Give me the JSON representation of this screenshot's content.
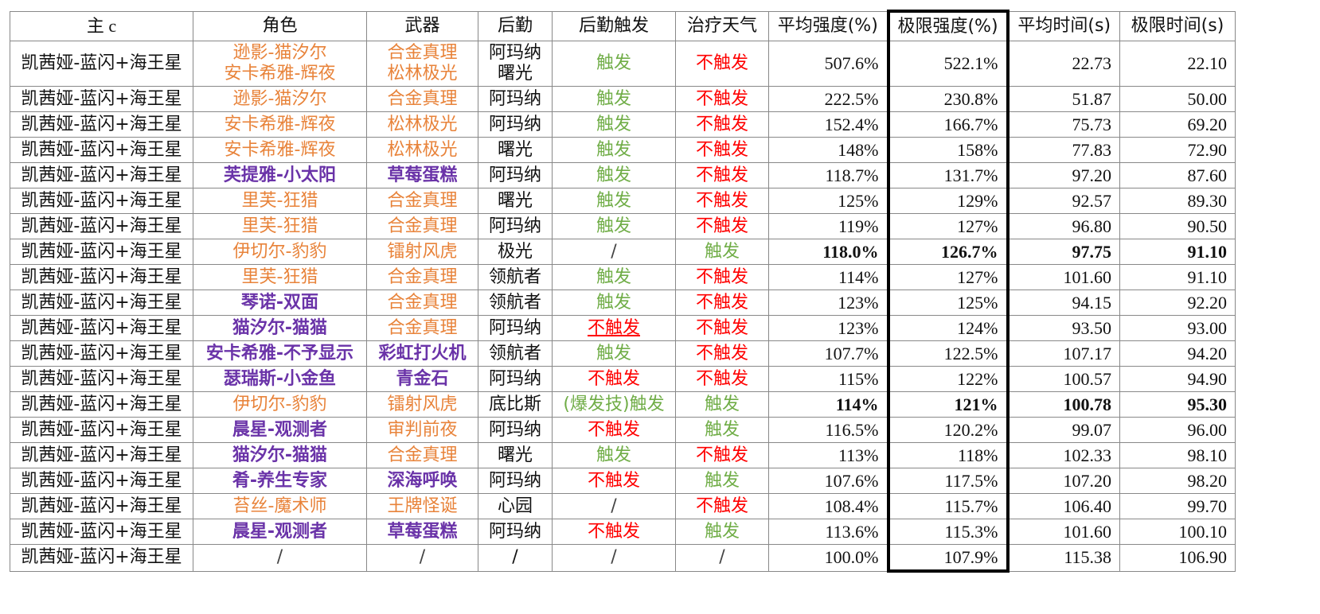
{
  "headers": [
    "主 c",
    "角色",
    "武器",
    "后勤",
    "后勤触发",
    "治疗天气",
    "平均强度(%)",
    "极限强度(%)",
    "平均时间(s)",
    "极限时间(s)"
  ],
  "rows": [
    {
      "main": "凯茜娅-蓝闪+海王星",
      "role": [
        "逊影-猫汐尔",
        "安卡希雅-辉夜"
      ],
      "role_style": "orange",
      "weapon": [
        "合金真理",
        "松林极光"
      ],
      "weapon_style": "orange",
      "logi": [
        "阿玛纳",
        "曙光"
      ],
      "trigger": "触发",
      "trigger_style": "green",
      "heal": "不触发",
      "heal_style": "red",
      "avg": "507.6%",
      "max": "522.1%",
      "avg_t": "22.73",
      "max_t": "22.10",
      "bold": false
    },
    {
      "main": "凯茜娅-蓝闪+海王星",
      "role": "逊影-猫汐尔",
      "role_style": "orange",
      "weapon": "合金真理",
      "weapon_style": "orange",
      "logi": "阿玛纳",
      "trigger": "触发",
      "trigger_style": "green",
      "heal": "不触发",
      "heal_style": "red",
      "avg": "222.5%",
      "max": "230.8%",
      "avg_t": "51.87",
      "max_t": "50.00",
      "bold": false
    },
    {
      "main": "凯茜娅-蓝闪+海王星",
      "role": "安卡希雅-辉夜",
      "role_style": "orange",
      "weapon": "松林极光",
      "weapon_style": "orange",
      "logi": "阿玛纳",
      "trigger": "触发",
      "trigger_style": "green",
      "heal": "不触发",
      "heal_style": "red",
      "avg": "152.4%",
      "max": "166.7%",
      "avg_t": "75.73",
      "max_t": "69.20",
      "bold": false
    },
    {
      "main": "凯茜娅-蓝闪+海王星",
      "role": "安卡希雅-辉夜",
      "role_style": "orange",
      "weapon": "松林极光",
      "weapon_style": "orange",
      "logi": "曙光",
      "trigger": "触发",
      "trigger_style": "green",
      "heal": "不触发",
      "heal_style": "red",
      "avg": "148%",
      "max": "158%",
      "avg_t": "77.83",
      "max_t": "72.90",
      "bold": false
    },
    {
      "main": "凯茜娅-蓝闪+海王星",
      "role": "芙提雅-小太阳",
      "role_style": "purple",
      "weapon": "草莓蛋糕",
      "weapon_style": "purple",
      "logi": "阿玛纳",
      "trigger": "触发",
      "trigger_style": "green",
      "heal": "不触发",
      "heal_style": "red",
      "avg": "118.7%",
      "max": "131.7%",
      "avg_t": "97.20",
      "max_t": "87.60",
      "bold": false
    },
    {
      "main": "凯茜娅-蓝闪+海王星",
      "role": "里芙-狂猎",
      "role_style": "orange",
      "weapon": "合金真理",
      "weapon_style": "orange",
      "logi": "曙光",
      "trigger": "触发",
      "trigger_style": "green",
      "heal": "不触发",
      "heal_style": "red",
      "avg": "125%",
      "max": "129%",
      "avg_t": "92.57",
      "max_t": "89.30",
      "bold": false
    },
    {
      "main": "凯茜娅-蓝闪+海王星",
      "role": "里芙-狂猎",
      "role_style": "orange",
      "weapon": "合金真理",
      "weapon_style": "orange",
      "logi": "阿玛纳",
      "trigger": "触发",
      "trigger_style": "green",
      "heal": "不触发",
      "heal_style": "red",
      "avg": "119%",
      "max": "127%",
      "avg_t": "96.80",
      "max_t": "90.50",
      "bold": false
    },
    {
      "main": "凯茜娅-蓝闪+海王星",
      "role": "伊切尔-豹豹",
      "role_style": "orange",
      "weapon": "镭射风虎",
      "weapon_style": "orange",
      "logi": "极光",
      "trigger": "/",
      "trigger_style": "grey",
      "heal": "触发",
      "heal_style": "green",
      "avg": "118.0%",
      "max": "126.7%",
      "avg_t": "97.75",
      "max_t": "91.10",
      "bold": true
    },
    {
      "main": "凯茜娅-蓝闪+海王星",
      "role": "里芙-狂猎",
      "role_style": "orange",
      "weapon": "合金真理",
      "weapon_style": "orange",
      "logi": "领航者",
      "trigger": "触发",
      "trigger_style": "green",
      "heal": "不触发",
      "heal_style": "red",
      "avg": "114%",
      "max": "127%",
      "avg_t": "101.60",
      "max_t": "91.10",
      "bold": false
    },
    {
      "main": "凯茜娅-蓝闪+海王星",
      "role": "琴诺-双面",
      "role_style": "purple",
      "weapon": "合金真理",
      "weapon_style": "orange",
      "logi": "领航者",
      "trigger": "触发",
      "trigger_style": "green",
      "heal": "不触发",
      "heal_style": "red",
      "avg": "123%",
      "max": "125%",
      "avg_t": "94.15",
      "max_t": "92.20",
      "bold": false
    },
    {
      "main": "凯茜娅-蓝闪+海王星",
      "role": "猫汐尔-猫猫",
      "role_style": "purple",
      "weapon": "合金真理",
      "weapon_style": "orange",
      "logi": "阿玛纳",
      "trigger": "不触发",
      "trigger_style": "red uline",
      "heal": "不触发",
      "heal_style": "red",
      "avg": "123%",
      "max": "124%",
      "avg_t": "93.50",
      "max_t": "93.00",
      "bold": false
    },
    {
      "main": "凯茜娅-蓝闪+海王星",
      "role": "安卡希雅-不予显示",
      "role_style": "purple",
      "weapon": "彩虹打火机",
      "weapon_style": "purple",
      "logi": "领航者",
      "trigger": "触发",
      "trigger_style": "green",
      "heal": "不触发",
      "heal_style": "red",
      "avg": "107.7%",
      "max": "122.5%",
      "avg_t": "107.17",
      "max_t": "94.20",
      "bold": false
    },
    {
      "main": "凯茜娅-蓝闪+海王星",
      "role": "瑟瑞斯-小金鱼",
      "role_style": "purple",
      "weapon": "青金石",
      "weapon_style": "purple",
      "logi": "阿玛纳",
      "trigger": "不触发",
      "trigger_style": "red",
      "heal": "不触发",
      "heal_style": "red",
      "avg": "115%",
      "max": "122%",
      "avg_t": "100.57",
      "max_t": "94.90",
      "bold": false
    },
    {
      "main": "凯茜娅-蓝闪+海王星",
      "role": "伊切尔-豹豹",
      "role_style": "orange",
      "weapon": "镭射风虎",
      "weapon_style": "orange",
      "logi": "底比斯",
      "trigger": "(爆发技)触发",
      "trigger_style": "green",
      "heal": "触发",
      "heal_style": "green",
      "avg": "114%",
      "max": "121%",
      "avg_t": "100.78",
      "max_t": "95.30",
      "bold": true
    },
    {
      "main": "凯茜娅-蓝闪+海王星",
      "role": "晨星-观测者",
      "role_style": "purple",
      "weapon": "审判前夜",
      "weapon_style": "orange",
      "logi": "阿玛纳",
      "trigger": "不触发",
      "trigger_style": "red",
      "heal": "触发",
      "heal_style": "green",
      "avg": "116.5%",
      "max": "120.2%",
      "avg_t": "99.07",
      "max_t": "96.00",
      "bold": false
    },
    {
      "main": "凯茜娅-蓝闪+海王星",
      "role": "猫汐尔-猫猫",
      "role_style": "purple",
      "weapon": "合金真理",
      "weapon_style": "orange",
      "logi": "曙光",
      "trigger": "触发",
      "trigger_style": "green",
      "heal": "不触发",
      "heal_style": "red",
      "avg": "113%",
      "max": "118%",
      "avg_t": "102.33",
      "max_t": "98.10",
      "bold": false
    },
    {
      "main": "凯茜娅-蓝闪+海王星",
      "role": "肴-养生专家",
      "role_style": "purple",
      "weapon": "深海呼唤",
      "weapon_style": "purple",
      "logi": "阿玛纳",
      "trigger": "不触发",
      "trigger_style": "red",
      "heal": "触发",
      "heal_style": "green",
      "avg": "107.6%",
      "max": "117.5%",
      "avg_t": "107.20",
      "max_t": "98.20",
      "bold": false
    },
    {
      "main": "凯茜娅-蓝闪+海王星",
      "role": "苔丝-魔术师",
      "role_style": "orange",
      "weapon": "王牌怪诞",
      "weapon_style": "orange",
      "logi": "心园",
      "trigger": "/",
      "trigger_style": "grey",
      "heal": "不触发",
      "heal_style": "red",
      "avg": "108.4%",
      "max": "115.7%",
      "avg_t": "106.40",
      "max_t": "99.70",
      "bold": false
    },
    {
      "main": "凯茜娅-蓝闪+海王星",
      "role": "晨星-观测者",
      "role_style": "purple",
      "weapon": "草莓蛋糕",
      "weapon_style": "purple",
      "logi": "阿玛纳",
      "trigger": "不触发",
      "trigger_style": "red",
      "heal": "触发",
      "heal_style": "green",
      "avg": "113.6%",
      "max": "115.3%",
      "avg_t": "101.60",
      "max_t": "100.10",
      "bold": false
    },
    {
      "main": "凯茜娅-蓝闪+海王星",
      "role": "/",
      "role_style": "grey",
      "weapon": "/",
      "weapon_style": "grey",
      "logi": "/",
      "trigger": "/",
      "trigger_style": "grey",
      "heal": "/",
      "heal_style": "grey",
      "avg": "100.0%",
      "max": "107.9%",
      "avg_t": "115.38",
      "max_t": "106.90",
      "bold": false
    }
  ]
}
